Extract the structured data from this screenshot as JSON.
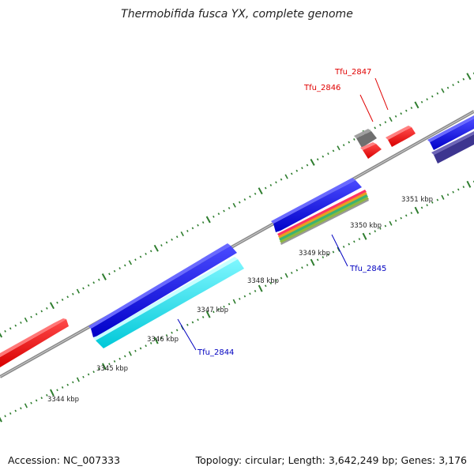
{
  "title": "Thermobifida fusca YX, complete genome",
  "footer": {
    "accession": "Accession: NC_007333",
    "topology": "Topology: circular; Length: 3,642,249 bp; Genes: 3,176"
  },
  "colors": {
    "backbone": "#888888",
    "tick_marks": "#2e7d2e",
    "highlight_label": "#e00000",
    "gene_label": "#0000c0",
    "forward_cds": "#1010e0",
    "cyan_feature": "#00e5ee",
    "red_feature": "#ff1010",
    "gray_feature": "#777777",
    "slate_feature": "#4a3f8a",
    "stripe_colors": [
      "#ff3366",
      "#e8a020",
      "#3cb371",
      "#8db840",
      "#999999"
    ]
  },
  "kbp_labels": [
    {
      "id": "3344",
      "text": "3344 kbp"
    },
    {
      "id": "3345",
      "text": "3345 kbp"
    },
    {
      "id": "3346",
      "text": "3346 kbp"
    },
    {
      "id": "3347",
      "text": "3347 kbp"
    },
    {
      "id": "3348",
      "text": "3348 kbp"
    },
    {
      "id": "3349",
      "text": "3349 kbp"
    },
    {
      "id": "3350",
      "text": "3350 kbp"
    },
    {
      "id": "3351",
      "text": "3351 kbp"
    }
  ],
  "gene_labels": [
    {
      "id": "tfu-2847",
      "text": "Tfu_2847",
      "color": "#e00000"
    },
    {
      "id": "tfu-2846",
      "text": "Tfu_2846",
      "color": "#e00000"
    },
    {
      "id": "tfu-2845",
      "text": "Tfu_2845",
      "color": "#0000c0"
    },
    {
      "id": "tfu-2844",
      "text": "Tfu_2844",
      "color": "#0000c0"
    }
  ]
}
